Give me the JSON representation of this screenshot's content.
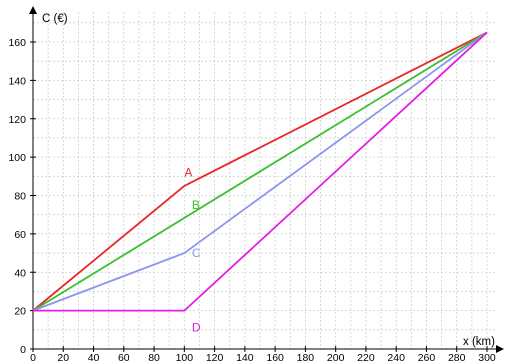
{
  "chart_data": {
    "type": "line",
    "xlabel": "x (km)",
    "ylabel": "C (€)",
    "xlim": [
      0,
      300
    ],
    "ylim": [
      0,
      160
    ],
    "x_ticks": [
      0,
      20,
      40,
      60,
      80,
      100,
      120,
      140,
      160,
      180,
      200,
      220,
      240,
      260,
      280,
      300
    ],
    "y_ticks": [
      0,
      20,
      40,
      60,
      80,
      100,
      120,
      140,
      160
    ],
    "grid": true,
    "legend": "none",
    "series": [
      {
        "name": "A",
        "color": "#e8272a",
        "x": [
          0,
          100,
          300
        ],
        "y": [
          20,
          85,
          165
        ]
      },
      {
        "name": "B",
        "color": "#3bbf2f",
        "x": [
          0,
          300
        ],
        "y": [
          20,
          165
        ]
      },
      {
        "name": "C",
        "color": "#8c95f0",
        "x": [
          0,
          100,
          300
        ],
        "y": [
          20,
          50,
          165
        ]
      },
      {
        "name": "D",
        "color": "#e21ee2",
        "x": [
          0,
          100,
          300
        ],
        "y": [
          20,
          20,
          165
        ]
      }
    ],
    "series_label_anchor_x": [
      100,
      105,
      105,
      105
    ],
    "series_label_anchor_y": [
      90,
      73,
      48,
      9
    ]
  }
}
